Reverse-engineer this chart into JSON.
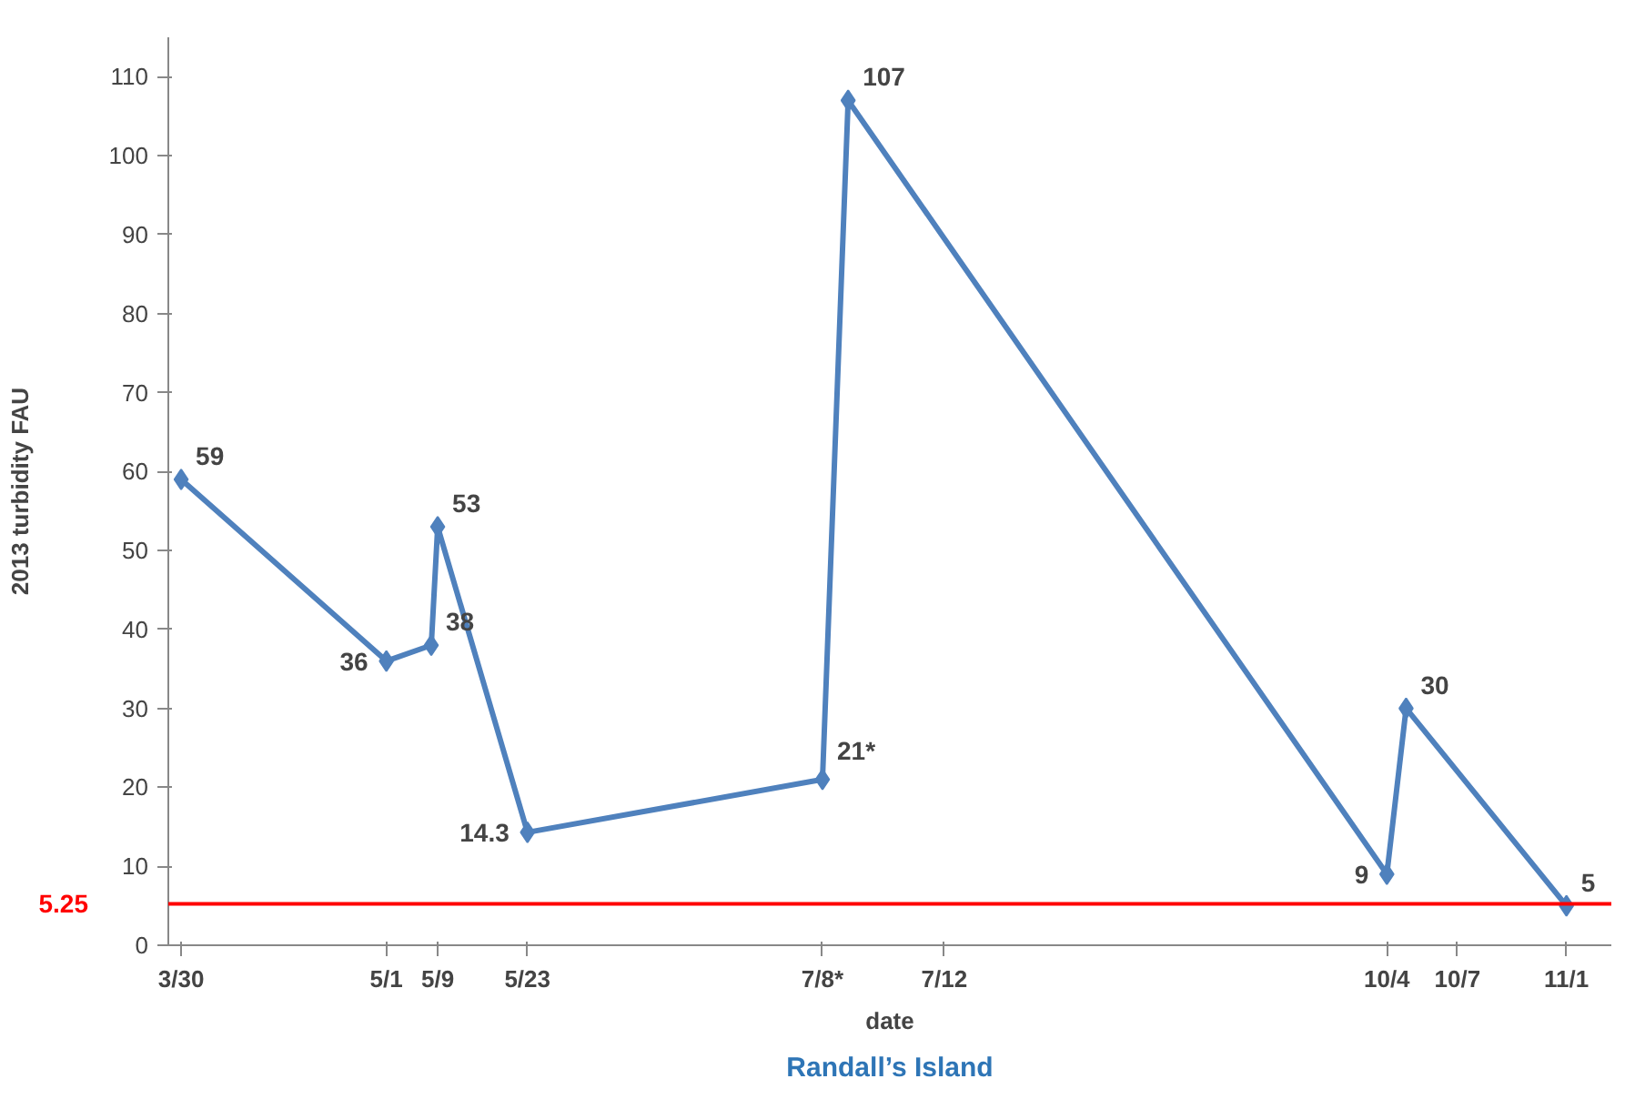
{
  "chart_data": {
    "type": "line",
    "xlabel": "date",
    "ylabel": "2013 turbidity FAU",
    "annotations": [
      "Randall’s Island"
    ],
    "x": [
      "2013-03-30",
      "2013-05-01",
      "2013-05-08",
      "2013-05-09",
      "2013-05-23",
      "2013-07-08",
      "2013-07-12",
      "2013-10-04",
      "2013-10-07",
      "2013-11-01"
    ],
    "series": [
      {
        "color": "#4f81bd",
        "values": [
          59,
          36,
          38,
          53,
          14.3,
          21,
          107,
          9,
          30,
          5
        ],
        "value_labels": [
          "59",
          "36",
          "38",
          "53",
          "14.3",
          "21*",
          "107",
          "9",
          "30",
          "5"
        ]
      }
    ],
    "xlim": [
      "2013-03-28",
      "2013-11-08"
    ],
    "xticks": [
      {
        "value": "2013-03-30",
        "label": "3/30"
      },
      {
        "value": "2013-05-01",
        "label": "5/1"
      },
      {
        "value": "2013-05-09",
        "label": "5/9"
      },
      {
        "value": "2013-05-23",
        "label": "5/23"
      },
      {
        "value": "2013-07-08",
        "label": "7/8*"
      },
      {
        "value": "2013-07-27",
        "label": "7/12"
      },
      {
        "value": "2013-10-04",
        "label": "10/4"
      },
      {
        "value": "2013-10-15",
        "label": "10/7"
      },
      {
        "value": "2013-11-01",
        "label": "11/1"
      }
    ],
    "ylim": [
      0,
      115
    ],
    "yticks": [
      0,
      10,
      20,
      30,
      40,
      50,
      60,
      70,
      80,
      90,
      100,
      110
    ],
    "ref_lines": [
      {
        "axis": "y",
        "value": 5.25,
        "label": "5.25",
        "color": "#ff0000"
      }
    ],
    "marker": "diamond",
    "grid": false
  }
}
